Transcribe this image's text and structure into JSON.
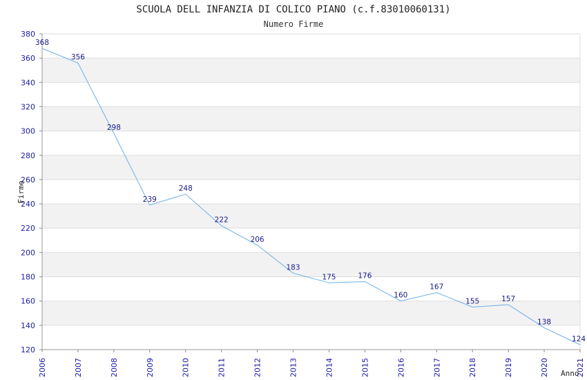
{
  "chart_data": {
    "type": "line",
    "title": "SCUOLA DELL INFANZIA DI COLICO PIANO (c.f.83010060131)",
    "subtitle": "Numero Firme",
    "xlabel": "Anno",
    "ylabel": "Firme",
    "x": [
      "2006",
      "2007",
      "2008",
      "2009",
      "2010",
      "2011",
      "2012",
      "2013",
      "2014",
      "2015",
      "2016",
      "2017",
      "2018",
      "2019",
      "2020",
      "2021"
    ],
    "values": [
      368,
      356,
      298,
      239,
      248,
      222,
      206,
      183,
      175,
      176,
      160,
      167,
      155,
      157,
      138,
      124
    ],
    "ylim": [
      120,
      380
    ],
    "yticks": [
      120,
      140,
      160,
      180,
      200,
      220,
      240,
      260,
      280,
      300,
      320,
      340,
      360,
      380
    ],
    "grid": true,
    "line_color": "#6aaee8",
    "label_color": "#1a1a8c",
    "tick_color": "#1a1aa6",
    "band_color": "#f2f2f2"
  }
}
